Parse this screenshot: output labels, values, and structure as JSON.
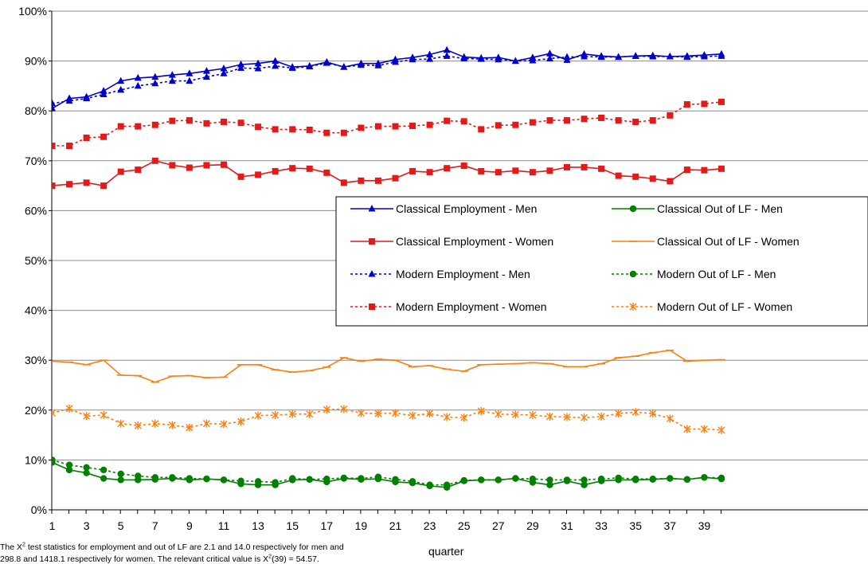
{
  "chart_data": {
    "type": "line",
    "xlabel": "quarter",
    "ylabel": "",
    "ylim": [
      0,
      100
    ],
    "y_ticks": [
      "0%",
      "10%",
      "20%",
      "30%",
      "40%",
      "50%",
      "60%",
      "70%",
      "80%",
      "90%",
      "100%"
    ],
    "x_ticks": [
      1,
      3,
      5,
      7,
      9,
      11,
      13,
      15,
      17,
      19,
      21,
      23,
      25,
      27,
      29,
      31,
      33,
      35,
      37,
      39
    ],
    "x": [
      1,
      2,
      3,
      4,
      5,
      6,
      7,
      8,
      9,
      10,
      11,
      12,
      13,
      14,
      15,
      16,
      17,
      18,
      19,
      20,
      21,
      22,
      23,
      24,
      25,
      26,
      27,
      28,
      29,
      30,
      31,
      32,
      33,
      34,
      35,
      36,
      37,
      38,
      39,
      40
    ],
    "grid": "horizontal",
    "legend_position": "center-right",
    "series": [
      {
        "name": "Classical Employment - Men",
        "color": "#0000cc",
        "marker": "triangle",
        "dash": "solid",
        "values": [
          80.5,
          82.5,
          82.8,
          84.0,
          86.0,
          86.6,
          86.8,
          87.2,
          87.5,
          88.0,
          88.5,
          89.3,
          89.5,
          90.0,
          88.8,
          89.0,
          89.8,
          88.8,
          89.5,
          89.5,
          90.3,
          90.7,
          91.3,
          92.2,
          90.8,
          90.6,
          90.7,
          90.0,
          90.7,
          91.5,
          90.2,
          91.4,
          91.0,
          90.8,
          91.0,
          91.1,
          90.9,
          91.0,
          91.2,
          91.4
        ]
      },
      {
        "name": "Classical Out of LF - Men",
        "color": "#008000",
        "marker": "circle",
        "dash": "solid",
        "values": [
          9.5,
          8.0,
          7.4,
          6.3,
          6.0,
          6.0,
          6.1,
          6.3,
          6.0,
          6.2,
          6.0,
          5.2,
          5.0,
          5.0,
          6.0,
          6.1,
          5.6,
          6.3,
          6.1,
          6.2,
          5.6,
          5.4,
          4.8,
          4.5,
          5.8,
          6.0,
          6.0,
          6.3,
          5.5,
          5.0,
          5.8,
          5.0,
          5.8,
          6.0,
          6.0,
          6.1,
          6.3,
          6.1,
          6.5,
          6.2
        ]
      },
      {
        "name": "Classical Employment - Women",
        "color": "#e41a1a",
        "marker": "square",
        "dash": "solid",
        "values": [
          65.0,
          65.3,
          65.6,
          65.0,
          67.8,
          68.2,
          70.0,
          69.1,
          68.6,
          69.1,
          69.2,
          66.8,
          67.2,
          67.9,
          68.5,
          68.4,
          67.6,
          65.6,
          66.0,
          66.0,
          66.5,
          67.9,
          67.7,
          68.5,
          69.0,
          67.9,
          67.7,
          68.0,
          67.7,
          68.0,
          68.7,
          68.7,
          68.4,
          67.0,
          66.8,
          66.4,
          65.9,
          68.2,
          68.1,
          68.4
        ]
      },
      {
        "name": "Classical Out of LF - Women",
        "color": "#ff7f0e",
        "marker": "cross",
        "dash": "solid",
        "values": [
          29.8,
          29.6,
          29.1,
          30.0,
          27.0,
          26.9,
          25.6,
          26.8,
          26.9,
          26.5,
          26.6,
          29.1,
          29.1,
          28.1,
          27.6,
          27.9,
          28.6,
          30.5,
          29.8,
          30.2,
          30.0,
          28.7,
          28.9,
          28.2,
          27.8,
          29.1,
          29.2,
          29.3,
          29.5,
          29.3,
          28.7,
          28.7,
          29.3,
          30.5,
          30.8,
          31.5,
          32.0,
          29.8,
          30.0,
          30.1
        ]
      },
      {
        "name": "Modern Employment - Men",
        "color": "#0000cc",
        "marker": "triangle",
        "dash": "dotted",
        "values": [
          81.5,
          82.0,
          82.5,
          83.3,
          84.2,
          85.0,
          85.5,
          86.0,
          86.0,
          86.8,
          87.5,
          88.6,
          88.5,
          89.0,
          88.6,
          88.9,
          89.6,
          88.8,
          89.2,
          89.1,
          89.8,
          90.3,
          90.4,
          91.0,
          90.5,
          90.4,
          90.3,
          90.0,
          90.1,
          90.5,
          90.8,
          90.9,
          90.8,
          90.8,
          91.0,
          90.9,
          90.9,
          90.8,
          90.9,
          91.0
        ]
      },
      {
        "name": "Modern Out of LF - Men",
        "color": "#008000",
        "marker": "circle",
        "dash": "dotted",
        "values": [
          10.0,
          9.0,
          8.5,
          8.0,
          7.2,
          6.8,
          6.5,
          6.5,
          6.3,
          6.2,
          6.0,
          5.8,
          5.7,
          5.5,
          6.3,
          6.1,
          6.2,
          6.4,
          6.3,
          6.6,
          6.1,
          5.7,
          5.0,
          5.0,
          5.9,
          6.0,
          6.0,
          6.3,
          6.2,
          6.0,
          6.0,
          6.0,
          6.2,
          6.4,
          6.2,
          6.2,
          6.3,
          6.1,
          6.5,
          6.4
        ]
      },
      {
        "name": "Modern Employment - Women",
        "color": "#e41a1a",
        "marker": "square",
        "dash": "dotted",
        "values": [
          73.0,
          73.0,
          74.6,
          74.8,
          76.9,
          76.9,
          77.2,
          78.0,
          78.1,
          77.5,
          77.8,
          77.6,
          76.8,
          76.3,
          76.3,
          76.2,
          75.6,
          75.6,
          76.6,
          76.9,
          76.9,
          77.0,
          77.2,
          78.0,
          77.9,
          76.3,
          77.1,
          77.2,
          77.7,
          78.1,
          78.1,
          78.4,
          78.6,
          78.1,
          77.8,
          78.1,
          79.1,
          81.3,
          81.4,
          81.8
        ]
      },
      {
        "name": "Modern Out of LF - Women",
        "color": "#ff7f0e",
        "marker": "star",
        "dash": "dotted",
        "values": [
          19.4,
          20.3,
          18.8,
          19.0,
          17.3,
          16.9,
          17.3,
          17.0,
          16.5,
          17.3,
          17.2,
          17.7,
          18.9,
          19.0,
          19.2,
          19.2,
          20.1,
          20.2,
          19.4,
          19.3,
          19.4,
          18.9,
          19.3,
          18.6,
          18.5,
          19.8,
          19.2,
          19.1,
          19.0,
          18.7,
          18.6,
          18.5,
          18.7,
          19.3,
          19.6,
          19.3,
          18.3,
          16.2,
          16.2,
          16.0
        ]
      }
    ],
    "legend": [
      "Classical Employment - Men",
      "Classical Out of LF - Men",
      "Classical Employment - Women",
      "Classical Out of LF - Women",
      "Modern Employment - Men",
      "Modern Out of LF - Men",
      "Modern Employment - Women",
      "Modern Out of LF - Women"
    ]
  },
  "notes": {
    "line1_a": "The X",
    "line1_sup": "2",
    "line1_b": "  test statistics for employment and out of LF are 2.1 and 14.0 respectively for men and",
    "line2_a": "298.8 and 1418.1 respectively for women. The relevant critical value is X",
    "line2_sup": "2",
    "line2_b": "(39) = 54.57."
  }
}
